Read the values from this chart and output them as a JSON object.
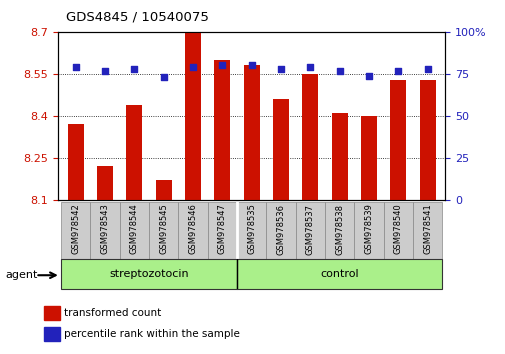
{
  "title": "GDS4845 / 10540075",
  "samples": [
    "GSM978542",
    "GSM978543",
    "GSM978544",
    "GSM978545",
    "GSM978546",
    "GSM978547",
    "GSM978535",
    "GSM978536",
    "GSM978537",
    "GSM978538",
    "GSM978539",
    "GSM978540",
    "GSM978541"
  ],
  "transformed_count": [
    8.37,
    8.22,
    8.44,
    8.17,
    8.7,
    8.6,
    8.58,
    8.46,
    8.55,
    8.41,
    8.4,
    8.53,
    8.53
  ],
  "percentile_rank": [
    79,
    77,
    78,
    73,
    79,
    80,
    80,
    78,
    79,
    77,
    74,
    77,
    78
  ],
  "ylim": [
    8.1,
    8.7
  ],
  "yticks": [
    8.1,
    8.25,
    8.4,
    8.55,
    8.7
  ],
  "ytick_labels": [
    "8.1",
    "8.25",
    "8.4",
    "8.55",
    "8.7"
  ],
  "right_yticks": [
    0,
    25,
    50,
    75,
    100
  ],
  "right_ytick_labels": [
    "0",
    "25",
    "50",
    "75",
    "100%"
  ],
  "bar_color": "#cc1100",
  "dot_color": "#2222bb",
  "group1_color": "#aaf08a",
  "group2_color": "#aaf08a",
  "ylabel_left_color": "#cc1100",
  "ylabel_right_color": "#2222bb",
  "agent_label": "agent",
  "group_labels": [
    "streptozotocin",
    "control"
  ],
  "n_group1": 6,
  "n_group2": 7,
  "legend_items": [
    "transformed count",
    "percentile rank within the sample"
  ]
}
